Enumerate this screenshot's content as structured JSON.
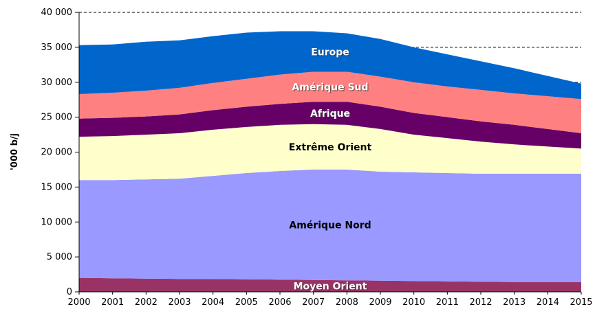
{
  "page": {
    "background": "#ffffff"
  },
  "chart_data": {
    "type": "area",
    "stacked": true,
    "title": "",
    "ylabel": "'000 b/j",
    "xlabel": "",
    "grid": {
      "style": "dashed",
      "color": "#000000",
      "interval": 5000
    },
    "legend_position": "labels-inside-areas",
    "ylim": [
      0,
      40000
    ],
    "yticks": [
      0,
      5000,
      10000,
      15000,
      20000,
      25000,
      30000,
      35000,
      40000
    ],
    "ytick_labels": [
      "0",
      "5 000",
      "10 000",
      "15 000",
      "20 000",
      "25 000",
      "30 000",
      "35 000",
      "40 000"
    ],
    "x": [
      2000,
      2001,
      2002,
      2003,
      2004,
      2005,
      2006,
      2007,
      2008,
      2009,
      2010,
      2011,
      2012,
      2013,
      2014,
      2015
    ],
    "x_labels": [
      "2000",
      "2001",
      "2002",
      "2003",
      "2004",
      "2005",
      "2006",
      "2007",
      "2008",
      "2009",
      "2010",
      "2011",
      "2012",
      "2013",
      "2014",
      "2015"
    ],
    "series": [
      {
        "name": "Moyen Orient",
        "color": "#993366",
        "label_color": "#ffffff",
        "values": [
          2000,
          1950,
          1900,
          1850,
          1850,
          1800,
          1750,
          1700,
          1650,
          1600,
          1550,
          1500,
          1450,
          1400,
          1400,
          1400
        ]
      },
      {
        "name": "Amérique Nord",
        "color": "#9999ff",
        "label_color": "#000000",
        "values": [
          14000,
          14050,
          14200,
          14350,
          14750,
          15200,
          15550,
          15800,
          15850,
          15600,
          15550,
          15500,
          15450,
          15500,
          15500,
          15500
        ]
      },
      {
        "name": "Extrême Orient",
        "color": "#ffffcc",
        "label_color": "#000000",
        "values": [
          6200,
          6300,
          6400,
          6500,
          6600,
          6600,
          6600,
          6500,
          6400,
          6100,
          5400,
          5000,
          4600,
          4200,
          3900,
          3600
        ]
      },
      {
        "name": "Afrique",
        "color": "#660066",
        "label_color": "#ffffff",
        "values": [
          2600,
          2600,
          2600,
          2700,
          2800,
          2900,
          3000,
          3200,
          3300,
          3200,
          3100,
          3000,
          2900,
          2800,
          2500,
          2200
        ]
      },
      {
        "name": "Amérique Sud",
        "color": "#ff8080",
        "label_color": "#ffffff",
        "values": [
          3500,
          3600,
          3700,
          3800,
          3900,
          4000,
          4200,
          4300,
          4300,
          4300,
          4400,
          4400,
          4500,
          4500,
          4700,
          4900
        ]
      },
      {
        "name": "Europe",
        "color": "#0066cc",
        "label_color": "#ffffff",
        "values": [
          7000,
          6900,
          7000,
          6800,
          6700,
          6600,
          6200,
          5800,
          5500,
          5400,
          5000,
          4600,
          4100,
          3600,
          2900,
          2200
        ]
      }
    ]
  }
}
